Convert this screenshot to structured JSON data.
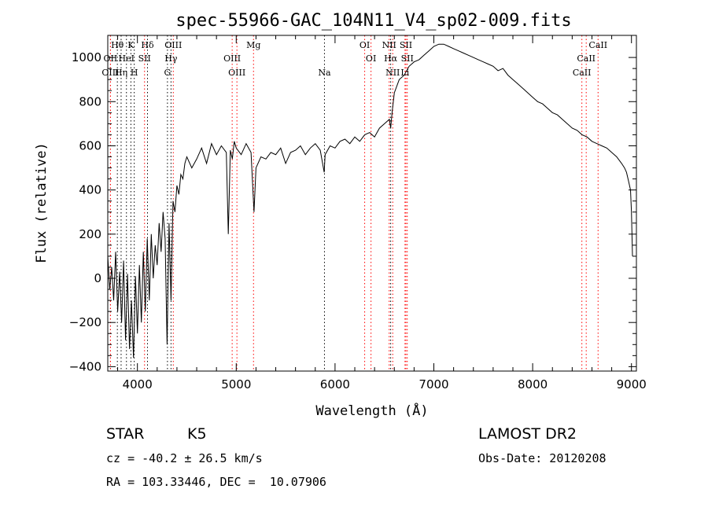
{
  "chart_data": {
    "type": "line",
    "title": "spec-55966-GAC_104N11_V4_sp02-009.fits",
    "xlabel": "Wavelength (Å)",
    "ylabel": "Flux (relative)",
    "xlim": [
      3700,
      9050
    ],
    "ylim": [
      -420,
      1100
    ],
    "x_ticks": [
      4000,
      5000,
      6000,
      7000,
      8000,
      9000
    ],
    "y_ticks": [
      -400,
      -200,
      0,
      200,
      400,
      600,
      800,
      1000
    ],
    "grid": false,
    "series": [
      {
        "x": [
          3700,
          3720,
          3740,
          3760,
          3780,
          3800,
          3820,
          3840,
          3860,
          3880,
          3900,
          3920,
          3940,
          3960,
          3980,
          4000,
          4020,
          4040,
          4060,
          4080,
          4100,
          4120,
          4140,
          4160,
          4180,
          4200,
          4220,
          4240,
          4260,
          4280,
          4300,
          4320,
          4340,
          4360,
          4380,
          4400,
          4420,
          4440,
          4460,
          4480,
          4500,
          4550,
          4600,
          4650,
          4700,
          4750,
          4800,
          4850,
          4900,
          4920,
          4940,
          4960,
          4980,
          5000,
          5050,
          5100,
          5150,
          5180,
          5200,
          5250,
          5300,
          5350,
          5400,
          5450,
          5500,
          5550,
          5600,
          5650,
          5700,
          5750,
          5800,
          5850,
          5890,
          5900,
          5950,
          6000,
          6050,
          6100,
          6150,
          6200,
          6250,
          6300,
          6350,
          6400,
          6450,
          6500,
          6550,
          6563,
          6580,
          6600,
          6650,
          6700,
          6750,
          6800,
          6850,
          6900,
          6950,
          7000,
          7050,
          7100,
          7150,
          7200,
          7250,
          7300,
          7350,
          7400,
          7450,
          7500,
          7550,
          7600,
          7650,
          7700,
          7750,
          7800,
          7850,
          7900,
          7950,
          8000,
          8050,
          8100,
          8150,
          8200,
          8250,
          8300,
          8350,
          8400,
          8450,
          8500,
          8550,
          8600,
          8650,
          8700,
          8750,
          8800,
          8850,
          8900,
          8930,
          8950,
          8970,
          8990,
          9000,
          9010
        ],
        "y": [
          100,
          -50,
          50,
          -100,
          120,
          -150,
          30,
          -200,
          80,
          -280,
          20,
          -320,
          -100,
          -360,
          10,
          -250,
          60,
          -200,
          120,
          -150,
          180,
          -100,
          200,
          0,
          150,
          60,
          250,
          120,
          300,
          180,
          -300,
          250,
          -100,
          350,
          300,
          420,
          380,
          470,
          450,
          520,
          550,
          500,
          540,
          590,
          520,
          610,
          560,
          600,
          570,
          200,
          580,
          540,
          620,
          590,
          560,
          610,
          570,
          300,
          500,
          550,
          540,
          570,
          560,
          590,
          520,
          570,
          580,
          600,
          560,
          590,
          610,
          580,
          480,
          560,
          600,
          590,
          620,
          630,
          610,
          640,
          620,
          650,
          660,
          640,
          680,
          700,
          720,
          680,
          760,
          840,
          900,
          920,
          960,
          980,
          990,
          1010,
          1030,
          1050,
          1060,
          1060,
          1050,
          1040,
          1030,
          1020,
          1010,
          1000,
          990,
          980,
          970,
          960,
          940,
          950,
          920,
          900,
          880,
          860,
          840,
          820,
          800,
          790,
          770,
          750,
          740,
          720,
          700,
          680,
          670,
          650,
          640,
          620,
          610,
          600,
          590,
          570,
          550,
          520,
          500,
          480,
          440,
          400,
          300,
          100
        ]
      }
    ],
    "spectral_lines": [
      {
        "label": "Hθ",
        "x": 3797,
        "row": 0,
        "color": "#000000"
      },
      {
        "label": "K",
        "x": 3934,
        "row": 0,
        "color": "#000000"
      },
      {
        "label": "Hδ",
        "x": 4102,
        "row": 0,
        "color": "#000000"
      },
      {
        "label": "OIII",
        "x": 4363,
        "row": 0,
        "color": "#ff0000"
      },
      {
        "label": "Mg",
        "x": 5175,
        "row": 0,
        "color": "#ff0000"
      },
      {
        "label": "OI",
        "x": 6300,
        "row": 0,
        "color": "#ff0000"
      },
      {
        "label": "NII",
        "x": 6548,
        "row": 0,
        "color": "#ff0000"
      },
      {
        "label": "SII",
        "x": 6717,
        "row": 0,
        "color": "#ff0000"
      },
      {
        "label": "CaII",
        "x": 8662,
        "row": 0,
        "color": "#ff0000"
      },
      {
        "label": "OII",
        "x": 3727,
        "row": 1,
        "color": "#ff0000"
      },
      {
        "label": "HeI",
        "x": 3889,
        "row": 1,
        "color": "#000000"
      },
      {
        "label": "SII",
        "x": 4072,
        "row": 1,
        "color": "#ff0000"
      },
      {
        "label": "Hγ",
        "x": 4340,
        "row": 1,
        "color": "#000000"
      },
      {
        "label": "OIII",
        "x": 4959,
        "row": 1,
        "color": "#ff0000"
      },
      {
        "label": "OI",
        "x": 6364,
        "row": 1,
        "color": "#ff0000"
      },
      {
        "label": "Hα",
        "x": 6563,
        "row": 1,
        "color": "#000000"
      },
      {
        "label": "SII",
        "x": 6731,
        "row": 1,
        "color": "#ff0000"
      },
      {
        "label": "CaII",
        "x": 8542,
        "row": 1,
        "color": "#ff0000"
      },
      {
        "label": "OIII",
        "x": 3727,
        "row": 2,
        "color": "#ff0000"
      },
      {
        "label": "Hη",
        "x": 3835,
        "row": 2,
        "color": "#000000"
      },
      {
        "label": "H",
        "x": 3968,
        "row": 2,
        "color": "#000000"
      },
      {
        "label": "G",
        "x": 4304,
        "row": 2,
        "color": "#000000"
      },
      {
        "label": "OIII",
        "x": 5007,
        "row": 2,
        "color": "#ff0000"
      },
      {
        "label": "Na",
        "x": 5893,
        "row": 2,
        "color": "#000000"
      },
      {
        "label": "NII",
        "x": 6584,
        "row": 2,
        "color": "#ff0000"
      },
      {
        "label": "Li",
        "x": 6708,
        "row": 2,
        "color": "#ff0000"
      },
      {
        "label": "CaII",
        "x": 8498,
        "row": 2,
        "color": "#ff0000"
      }
    ]
  },
  "info": {
    "object_class": "STAR",
    "subclass": "K5",
    "survey": "LAMOST DR2",
    "cz": "cz = -40.2 ± 26.5 km/s",
    "obs_date": "Obs-Date: 20120208",
    "coords": "RA = 103.33446, DEC =  10.07906"
  }
}
